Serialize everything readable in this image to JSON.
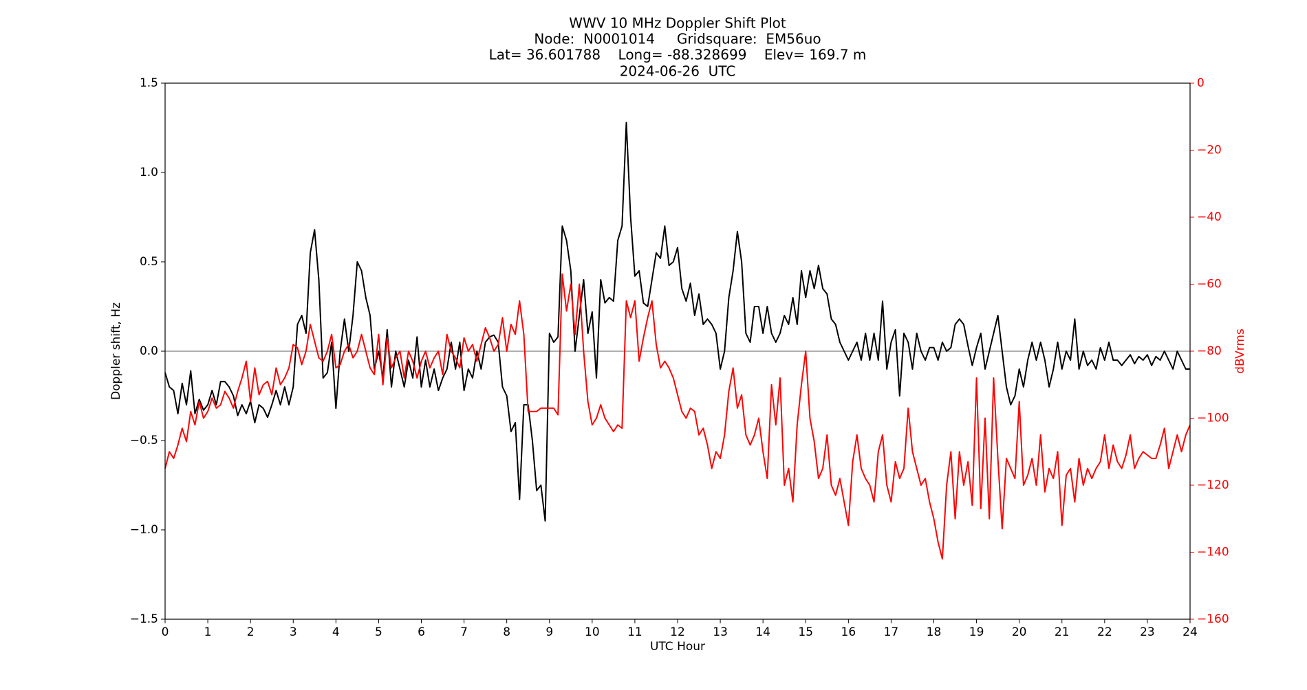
{
  "chart_data": {
    "type": "line",
    "title": "WWV 10 MHz Doppler Shift Plot",
    "subtitle": [
      "Node:  N0001014     Gridsquare:  EM56uo",
      "Lat= 36.601788    Long= -88.328699    Elev= 169.7 m",
      "2024-06-26  UTC"
    ],
    "xlabel": "UTC Hour",
    "ylabel": "Doppler shift, Hz",
    "y2label": "dBVrms",
    "xlim": [
      0,
      24
    ],
    "xticks": [
      0,
      1,
      2,
      3,
      4,
      5,
      6,
      7,
      8,
      9,
      10,
      11,
      12,
      13,
      14,
      15,
      16,
      17,
      18,
      19,
      20,
      21,
      22,
      23,
      24
    ],
    "ylim": [
      -1.5,
      1.5
    ],
    "yticks": [
      {
        "value": -1.5,
        "label": "−1.5"
      },
      {
        "value": -1,
        "label": "−1.0"
      },
      {
        "value": -0.5,
        "label": "−0.5"
      },
      {
        "value": 0,
        "label": "0.0"
      },
      {
        "value": 0.5,
        "label": "0.5"
      },
      {
        "value": 1,
        "label": "1.0"
      },
      {
        "value": 1.5,
        "label": "1.5"
      }
    ],
    "y2lim": [
      -160,
      0
    ],
    "y2ticks": [
      {
        "value": -160,
        "label": "−160"
      },
      {
        "value": -140,
        "label": "−140"
      },
      {
        "value": -120,
        "label": "−120"
      },
      {
        "value": -100,
        "label": "−100"
      },
      {
        "value": -80,
        "label": "−80"
      },
      {
        "value": -60,
        "label": "−60"
      },
      {
        "value": -40,
        "label": "−40"
      },
      {
        "value": -20,
        "label": "−20"
      },
      0
    ],
    "reference_line": 0,
    "grid": false,
    "x": [
      0,
      0.1,
      0.2,
      0.3,
      0.4,
      0.5,
      0.6,
      0.7,
      0.8,
      0.9,
      1,
      1.1,
      1.2,
      1.3,
      1.4,
      1.5,
      1.6,
      1.7,
      1.8,
      1.9,
      2,
      2.1,
      2.2,
      2.3,
      2.4,
      2.5,
      2.6,
      2.7,
      2.8,
      2.9,
      3,
      3.1,
      3.2,
      3.3,
      3.4,
      3.5,
      3.6,
      3.7,
      3.8,
      3.9,
      4,
      4.1,
      4.2,
      4.3,
      4.4,
      4.5,
      4.6,
      4.7,
      4.8,
      4.9,
      5,
      5.1,
      5.2,
      5.3,
      5.4,
      5.5,
      5.6,
      5.7,
      5.8,
      5.9,
      6,
      6.1,
      6.2,
      6.3,
      6.4,
      6.5,
      6.6,
      6.7,
      6.8,
      6.9,
      7,
      7.1,
      7.2,
      7.3,
      7.4,
      7.5,
      7.6,
      7.7,
      7.8,
      7.9,
      8,
      8.1,
      8.2,
      8.3,
      8.4,
      8.5,
      8.6,
      8.7,
      8.8,
      8.9,
      9,
      9.1,
      9.2,
      9.3,
      9.4,
      9.5,
      9.6,
      9.7,
      9.8,
      9.9,
      10,
      10.1,
      10.2,
      10.3,
      10.4,
      10.5,
      10.6,
      10.7,
      10.8,
      10.9,
      11,
      11.1,
      11.2,
      11.3,
      11.4,
      11.5,
      11.6,
      11.7,
      11.8,
      11.9,
      12,
      12.1,
      12.2,
      12.3,
      12.4,
      12.5,
      12.6,
      12.7,
      12.8,
      12.9,
      13,
      13.1,
      13.2,
      13.3,
      13.4,
      13.5,
      13.6,
      13.7,
      13.8,
      13.9,
      14,
      14.1,
      14.2,
      14.3,
      14.4,
      14.5,
      14.6,
      14.7,
      14.8,
      14.9,
      15,
      15.1,
      15.2,
      15.3,
      15.4,
      15.5,
      15.6,
      15.7,
      15.8,
      15.9,
      16,
      16.1,
      16.2,
      16.3,
      16.4,
      16.5,
      16.6,
      16.7,
      16.8,
      16.9,
      17,
      17.1,
      17.2,
      17.3,
      17.4,
      17.5,
      17.6,
      17.7,
      17.8,
      17.9,
      18,
      18.1,
      18.2,
      18.3,
      18.4,
      18.5,
      18.6,
      18.7,
      18.8,
      18.9,
      19,
      19.1,
      19.2,
      19.3,
      19.4,
      19.5,
      19.6,
      19.7,
      19.8,
      19.9,
      20,
      20.1,
      20.2,
      20.3,
      20.4,
      20.5,
      20.6,
      20.7,
      20.8,
      20.9,
      21,
      21.1,
      21.2,
      21.3,
      21.4,
      21.5,
      21.6,
      21.7,
      21.8,
      21.9,
      22,
      22.1,
      22.2,
      22.3,
      22.4,
      22.5,
      22.6,
      22.7,
      22.8,
      22.9,
      23,
      23.1,
      23.2,
      23.3,
      23.4,
      23.5,
      23.6,
      23.7,
      23.8,
      23.9,
      24
    ],
    "series": [
      {
        "color": "#000000",
        "values": [
          -0.12,
          -0.2,
          -0.22,
          -0.35,
          -0.18,
          -0.3,
          -0.11,
          -0.35,
          -0.27,
          -0.33,
          -0.3,
          -0.22,
          -0.3,
          -0.17,
          -0.17,
          -0.2,
          -0.25,
          -0.36,
          -0.3,
          -0.35,
          -0.28,
          -0.4,
          -0.3,
          -0.32,
          -0.37,
          -0.3,
          -0.22,
          -0.3,
          -0.2,
          -0.3,
          -0.2,
          0.15,
          0.2,
          0.1,
          0.55,
          0.68,
          0.4,
          -0.15,
          -0.12,
          0.05,
          -0.32,
          0,
          0.18,
          0,
          0.2,
          0.5,
          0.45,
          0.3,
          0.2,
          -0.1,
          0,
          -0.15,
          0.12,
          -0.2,
          0,
          -0.1,
          -0.2,
          -0.05,
          -0.15,
          0.08,
          -0.2,
          -0.05,
          -0.2,
          -0.1,
          -0.22,
          -0.15,
          -0.1,
          0.05,
          -0.1,
          0.05,
          -0.22,
          -0.1,
          -0.15,
          0,
          -0.1,
          0.05,
          0.08,
          0.09,
          0.05,
          -0.2,
          -0.25,
          -0.45,
          -0.4,
          -0.83,
          -0.3,
          -0.3,
          -0.5,
          -0.78,
          -0.75,
          -0.95,
          0.1,
          0.05,
          0.08,
          0.7,
          0.62,
          0.45,
          0,
          0.2,
          0.4,
          0.1,
          0.22,
          -0.15,
          0.4,
          0.27,
          0.3,
          0.28,
          0.62,
          0.7,
          1.28,
          0.75,
          0.42,
          0.45,
          0.27,
          0.25,
          0.4,
          0.55,
          0.52,
          0.7,
          0.48,
          0.5,
          0.58,
          0.35,
          0.28,
          0.38,
          0.2,
          0.32,
          0.15,
          0.18,
          0.15,
          0.1,
          -0.1,
          0,
          0.3,
          0.45,
          0.67,
          0.5,
          0.1,
          0.05,
          0.25,
          0.25,
          0.1,
          0.25,
          0.1,
          0.05,
          0.1,
          0.2,
          0.15,
          0.3,
          0.15,
          0.45,
          0.3,
          0.45,
          0.35,
          0.48,
          0.35,
          0.32,
          0.18,
          0.15,
          0.05,
          0,
          -0.05,
          0,
          0.05,
          -0.05,
          0.1,
          -0.05,
          0.1,
          -0.05,
          0.28,
          -0.1,
          0.05,
          0.12,
          -0.25,
          0.1,
          0.05,
          -0.1,
          0.1,
          0,
          -0.05,
          0.02,
          0.02,
          -0.05,
          0.05,
          0,
          0.02,
          0.15,
          0.18,
          0.15,
          0.03,
          -0.08,
          0.02,
          0.1,
          -0.1,
          0,
          0.1,
          0.2,
          0,
          -0.2,
          -0.3,
          -0.25,
          -0.1,
          -0.2,
          -0.05,
          0.05,
          -0.05,
          0.05,
          -0.05,
          -0.2,
          -0.1,
          0.05,
          -0.1,
          0,
          -0.05,
          0.18,
          -0.1,
          0,
          -0.08,
          -0.05,
          -0.1,
          0.02,
          -0.05,
          0.05,
          -0.05,
          -0.05,
          -0.08,
          -0.05,
          -0.02,
          -0.07,
          -0.03,
          -0.05,
          -0.02,
          -0.08,
          -0.03,
          -0.05,
          0,
          -0.05,
          -0.1,
          0,
          -0.05,
          -0.1,
          -0.1
        ]
      },
      {
        "color": "#ff0000",
        "axis": "y2",
        "values": [
          -115,
          -110,
          -112,
          -108,
          -103,
          -107,
          -98,
          -102,
          -95,
          -100,
          -98,
          -94,
          -97,
          -96,
          -92,
          -94,
          -97,
          -92,
          -88,
          -83,
          -95,
          -85,
          -93,
          -90,
          -89,
          -93,
          -85,
          -90,
          -88,
          -85,
          -78,
          -79,
          -84,
          -80,
          -72,
          -77,
          -82,
          -83,
          -80,
          -75,
          -85,
          -84,
          -80,
          -78,
          -82,
          -80,
          -75,
          -80,
          -85,
          -87,
          -75,
          -90,
          -76,
          -85,
          -82,
          -80,
          -88,
          -80,
          -83,
          -88,
          -83,
          -80,
          -85,
          -82,
          -80,
          -87,
          -75,
          -80,
          -82,
          -85,
          -76,
          -80,
          -78,
          -83,
          -78,
          -73,
          -76,
          -80,
          -78,
          -70,
          -80,
          -72,
          -75,
          -65,
          -75,
          -98,
          -98,
          -98,
          -97,
          -97,
          -97,
          -97,
          -99,
          -57,
          -68,
          -60,
          -75,
          -60,
          -80,
          -95,
          -102,
          -100,
          -96,
          -100,
          -102,
          -104,
          -102,
          -103,
          -65,
          -70,
          -65,
          -83,
          -76,
          -70,
          -65,
          -78,
          -85,
          -83,
          -85,
          -88,
          -93,
          -98,
          -100,
          -97,
          -98,
          -105,
          -103,
          -108,
          -115,
          -110,
          -112,
          -105,
          -92,
          -85,
          -97,
          -93,
          -105,
          -108,
          -105,
          -100,
          -110,
          -118,
          -90,
          -102,
          -88,
          -120,
          -115,
          -125,
          -102,
          -90,
          -80,
          -100,
          -107,
          -118,
          -115,
          -105,
          -120,
          -123,
          -118,
          -125,
          -132,
          -113,
          -105,
          -115,
          -118,
          -120,
          -125,
          -110,
          -105,
          -120,
          -125,
          -113,
          -118,
          -115,
          -97,
          -110,
          -115,
          -120,
          -118,
          -125,
          -130,
          -137,
          -142,
          -120,
          -110,
          -130,
          -110,
          -120,
          -113,
          -126,
          -88,
          -127,
          -100,
          -130,
          -88,
          -112,
          -133,
          -112,
          -115,
          -118,
          -95,
          -120,
          -117,
          -112,
          -120,
          -105,
          -122,
          -115,
          -118,
          -110,
          -132,
          -117,
          -115,
          -125,
          -112,
          -120,
          -115,
          -118,
          -115,
          -113,
          -105,
          -115,
          -108,
          -113,
          -115,
          -111,
          -105,
          -115,
          -112,
          -110,
          -111,
          -112,
          -112,
          -108,
          -103,
          -115,
          -110,
          -105,
          -110,
          -105,
          -102
        ]
      }
    ]
  }
}
